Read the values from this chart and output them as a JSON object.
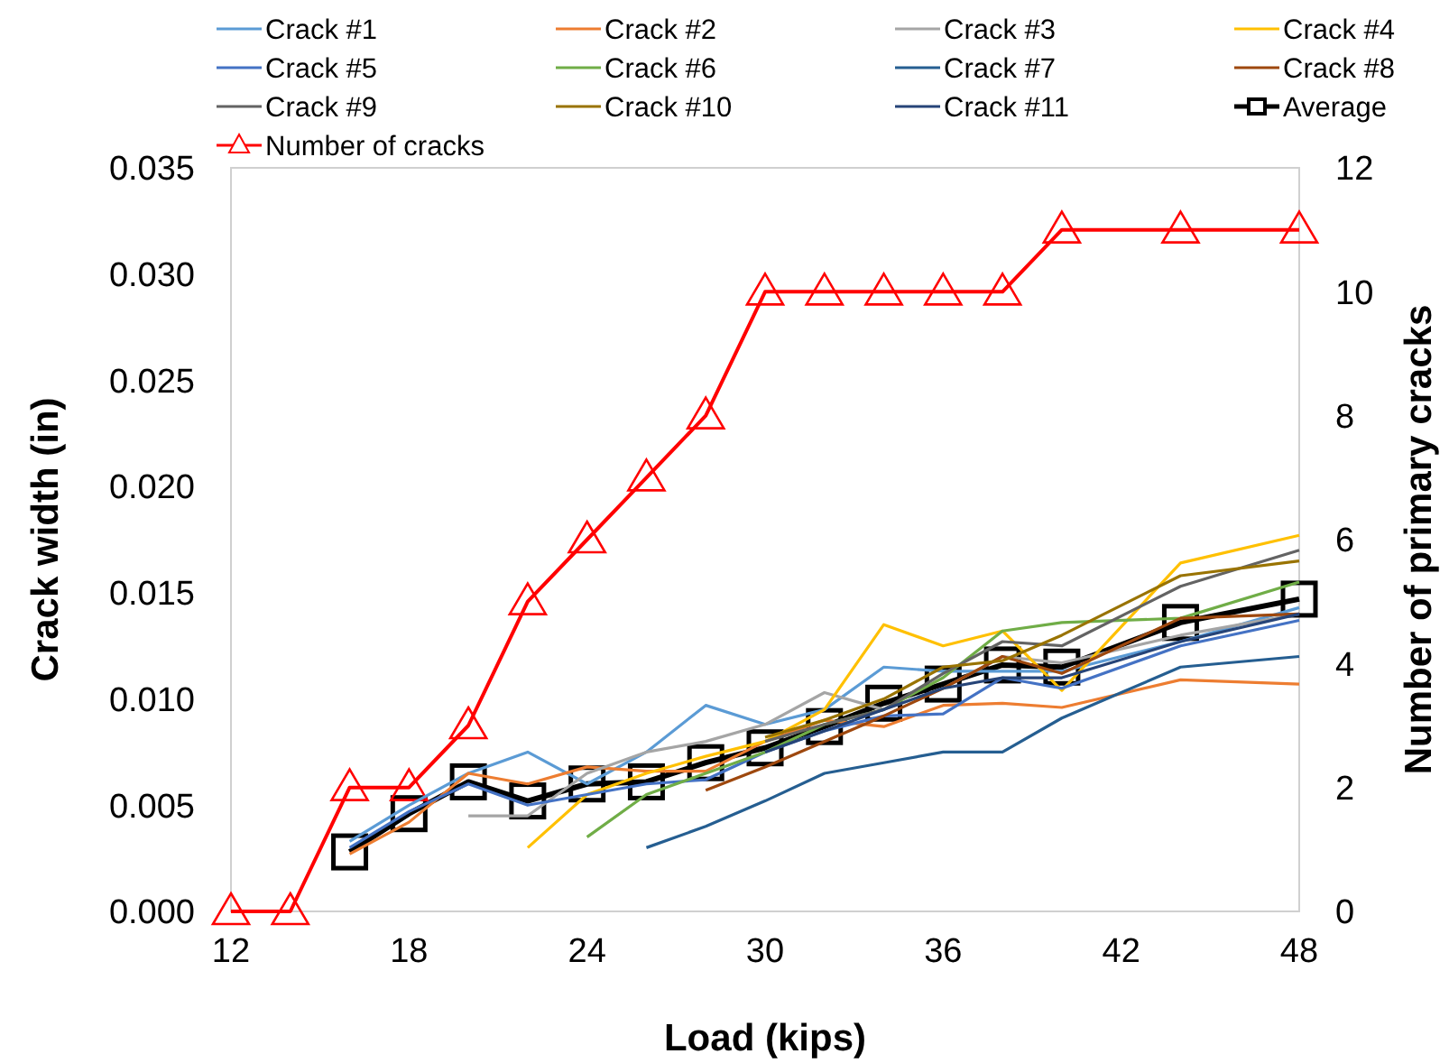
{
  "chart_data": {
    "type": "line",
    "xlabel": "Load (kips)",
    "ylabel": "Crack width (in)",
    "y2label": "Number of primary cracks",
    "x": [
      12,
      14,
      16,
      18,
      20,
      22,
      24,
      26,
      28,
      30,
      32,
      34,
      36,
      38,
      40,
      44,
      48
    ],
    "xlim": [
      12,
      48
    ],
    "xticks": [
      12,
      18,
      24,
      30,
      36,
      42,
      48
    ],
    "ylim": [
      0,
      0.035
    ],
    "yticks": [
      {
        "value": 0,
        "label": "0.000"
      },
      {
        "value": 0.005,
        "label": "0.005"
      },
      {
        "value": 0.01,
        "label": "0.010"
      },
      {
        "value": 0.015,
        "label": "0.015"
      },
      {
        "value": 0.02,
        "label": "0.020"
      },
      {
        "value": 0.025,
        "label": "0.025"
      },
      {
        "value": 0.03,
        "label": "0.030"
      },
      {
        "value": 0.035,
        "label": "0.035"
      }
    ],
    "y2lim": [
      0,
      12
    ],
    "y2ticks": [
      0,
      2,
      4,
      6,
      8,
      10,
      12
    ],
    "grid": false,
    "legend": "top",
    "marker": "none",
    "line_style": "solid",
    "series": [
      {
        "name": "Crack #1",
        "color": "#5b9bd5",
        "values": [
          null,
          null,
          0.0033,
          0.005,
          0.0065,
          0.0075,
          0.006,
          0.0075,
          0.0097,
          0.0088,
          0.0095,
          0.0115,
          0.0113,
          0.0113,
          0.0113,
          0.0127,
          0.0143
        ]
      },
      {
        "name": "Crack #2",
        "color": "#ed7d31",
        "values": [
          null,
          null,
          0.0027,
          0.0042,
          0.0065,
          0.006,
          0.0068,
          0.0066,
          0.0066,
          0.008,
          0.009,
          0.0087,
          0.0097,
          0.0098,
          0.0096,
          0.0109,
          0.0107
        ]
      },
      {
        "name": "Crack #3",
        "color": "#a5a5a5",
        "values": [
          null,
          null,
          null,
          null,
          0.0045,
          0.0045,
          0.0065,
          0.0075,
          0.008,
          0.0088,
          0.0103,
          0.0095,
          0.0105,
          0.012,
          0.0117,
          0.013,
          0.014
        ]
      },
      {
        "name": "Crack #4",
        "color": "#ffc000",
        "values": [
          null,
          null,
          null,
          null,
          null,
          0.003,
          0.0055,
          0.0065,
          0.0073,
          0.008,
          0.0095,
          0.0135,
          0.0125,
          0.0132,
          0.0104,
          0.0164,
          0.0177
        ]
      },
      {
        "name": "Crack #5",
        "color": "#4472c4",
        "values": [
          null,
          null,
          0.003,
          0.0047,
          0.006,
          0.005,
          0.0055,
          0.006,
          0.0062,
          0.0075,
          0.0085,
          0.0092,
          0.0093,
          0.011,
          0.0105,
          0.0125,
          0.0137
        ]
      },
      {
        "name": "Crack #6",
        "color": "#70ad47",
        "values": [
          null,
          null,
          null,
          null,
          null,
          null,
          0.0035,
          0.0055,
          0.0065,
          0.0075,
          0.0088,
          0.0095,
          0.011,
          0.0132,
          0.0136,
          0.0138,
          0.0155
        ]
      },
      {
        "name": "Crack #7",
        "color": "#255e91",
        "values": [
          null,
          null,
          null,
          null,
          null,
          null,
          null,
          0.003,
          0.004,
          0.0052,
          0.0065,
          0.007,
          0.0075,
          0.0075,
          0.0091,
          0.0115,
          0.012
        ]
      },
      {
        "name": "Crack #8",
        "color": "#9e480e",
        "values": [
          null,
          null,
          null,
          null,
          null,
          null,
          null,
          null,
          0.0057,
          0.0068,
          0.008,
          0.0092,
          0.0105,
          0.012,
          0.0112,
          0.0138,
          0.014
        ]
      },
      {
        "name": "Crack #9",
        "color": "#636363",
        "values": [
          null,
          null,
          null,
          null,
          null,
          null,
          null,
          null,
          null,
          0.008,
          0.0088,
          0.0095,
          0.0112,
          0.0127,
          0.0125,
          0.0153,
          0.017
        ]
      },
      {
        "name": "Crack #10",
        "color": "#997300",
        "values": [
          null,
          null,
          null,
          null,
          null,
          null,
          null,
          null,
          null,
          0.0082,
          0.009,
          0.01,
          0.0115,
          0.0118,
          0.013,
          0.0158,
          0.0165
        ]
      },
      {
        "name": "Crack #11",
        "color": "#264478",
        "values": [
          null,
          null,
          null,
          null,
          null,
          null,
          null,
          null,
          null,
          0.0075,
          0.0085,
          0.0095,
          0.0105,
          0.011,
          0.011,
          0.0127,
          0.014
        ]
      },
      {
        "name": "Average",
        "color": "#000000",
        "marker": "square",
        "values": [
          null,
          null,
          0.0028,
          0.0046,
          0.0061,
          0.0052,
          0.006,
          0.0061,
          0.007,
          0.0077,
          0.0087,
          0.0098,
          0.0107,
          0.0116,
          0.0115,
          0.0136,
          0.0147
        ]
      },
      {
        "name": "Number of cracks",
        "color": "#ff0000",
        "marker": "triangle",
        "axis": "y2",
        "values": [
          0,
          0,
          2,
          2,
          3,
          5,
          6,
          7,
          8,
          10,
          10,
          10,
          10,
          10,
          11,
          11,
          11
        ]
      }
    ]
  }
}
